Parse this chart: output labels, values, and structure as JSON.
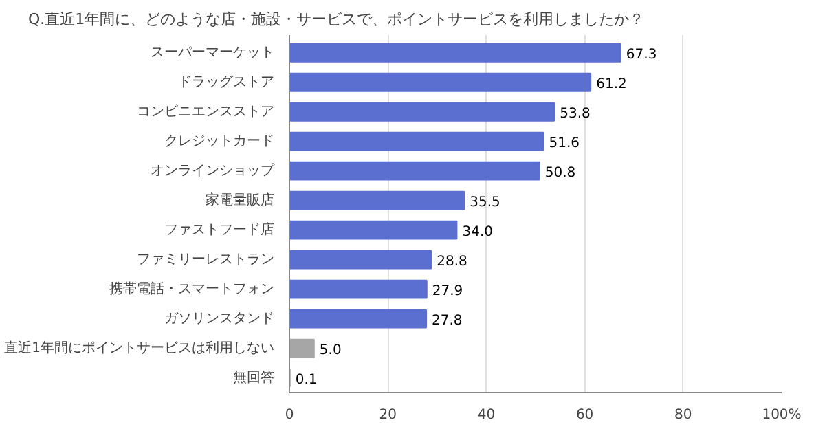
{
  "chart_data": {
    "type": "bar",
    "orientation": "horizontal",
    "title": "Q.直近1年間に、どのような店・施設・サービスで、ポイントサービスを利用しましたか？",
    "categories": [
      "スーパーマーケット",
      "ドラッグストア",
      "コンビニエンスストア",
      "クレジットカード",
      "オンラインショップ",
      "家電量販店",
      "ファストフード店",
      "ファミリーレストラン",
      "携帯電話・スマートフォン",
      "ガソリンスタンド",
      "直近1年間にポイントサービスは利用しない",
      "無回答"
    ],
    "values": [
      67.3,
      61.2,
      53.8,
      51.6,
      50.8,
      35.5,
      34.0,
      28.8,
      27.9,
      27.8,
      5.0,
      0.1
    ],
    "value_labels": [
      "67.3",
      "61.2",
      "53.8",
      "51.6",
      "50.8",
      "35.5",
      "34.0",
      "28.8",
      "27.9",
      "27.8",
      "5.0",
      "0.1"
    ],
    "colors": [
      "#5b6fd1",
      "#5b6fd1",
      "#5b6fd1",
      "#5b6fd1",
      "#5b6fd1",
      "#5b6fd1",
      "#5b6fd1",
      "#5b6fd1",
      "#5b6fd1",
      "#5b6fd1",
      "#a6a6a6",
      "#a6a6a6"
    ],
    "xlim": [
      0,
      100
    ],
    "xticks": [
      0,
      20,
      40,
      60,
      80,
      {
        "value": 100,
        "label": "100%"
      }
    ],
    "grid": "x"
  }
}
